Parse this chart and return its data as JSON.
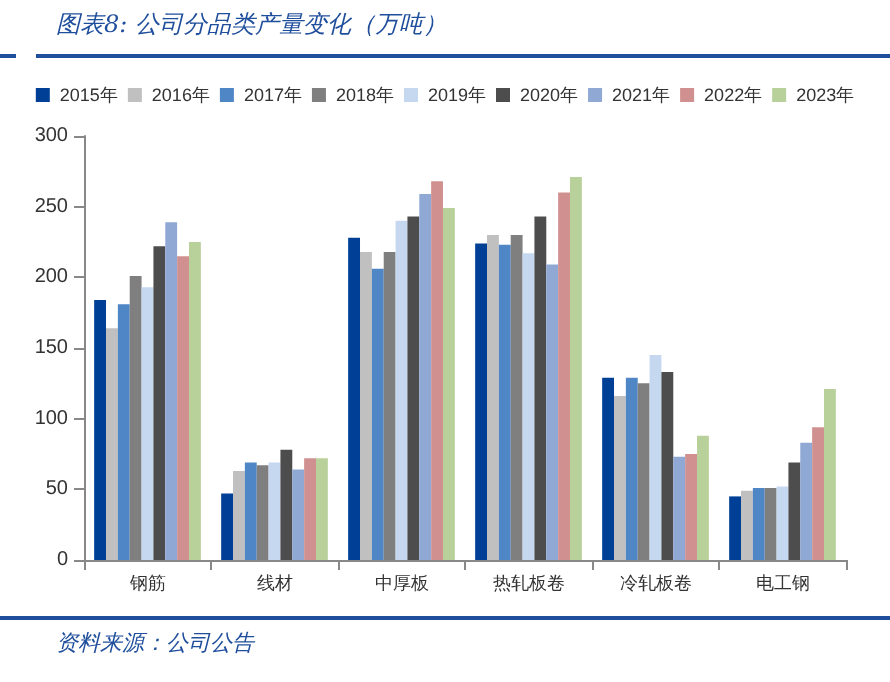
{
  "chart_data": {
    "type": "bar",
    "title": "图表8:  公司分品类产量变化（万吨）",
    "categories": [
      "钢筋",
      "线材",
      "中厚板",
      "热轧板卷",
      "冷轧板卷",
      "电工钢"
    ],
    "series": [
      {
        "name": "2015年",
        "color": "#003f96",
        "values": [
          184,
          47,
          228,
          224,
          129,
          45
        ]
      },
      {
        "name": "2016年",
        "color": "#c0c0c0",
        "values": [
          164,
          63,
          218,
          230,
          116,
          49
        ]
      },
      {
        "name": "2017年",
        "color": "#4f86c6",
        "values": [
          181,
          69,
          206,
          223,
          129,
          51
        ]
      },
      {
        "name": "2018年",
        "color": "#7f7f7f",
        "values": [
          201,
          67,
          218,
          230,
          125,
          51
        ]
      },
      {
        "name": "2019年",
        "color": "#c5d8f0",
        "values": [
          193,
          69,
          240,
          217,
          145,
          52
        ]
      },
      {
        "name": "2020年",
        "color": "#4d4d4d",
        "values": [
          222,
          78,
          243,
          243,
          133,
          69
        ]
      },
      {
        "name": "2021年",
        "color": "#8fa8d4",
        "values": [
          239,
          64,
          259,
          209,
          73,
          83
        ]
      },
      {
        "name": "2022年",
        "color": "#d09090",
        "values": [
          215,
          72,
          268,
          260,
          75,
          94
        ]
      },
      {
        "name": "2023年",
        "color": "#b8d09a",
        "values": [
          225,
          72,
          249,
          271,
          88,
          121
        ]
      }
    ],
    "ylim": [
      0,
      300
    ],
    "yticks": [
      0,
      50,
      100,
      150,
      200,
      250,
      300
    ],
    "grid": false,
    "legend": "top",
    "annotations": [
      "资料来源：公司公告"
    ]
  }
}
